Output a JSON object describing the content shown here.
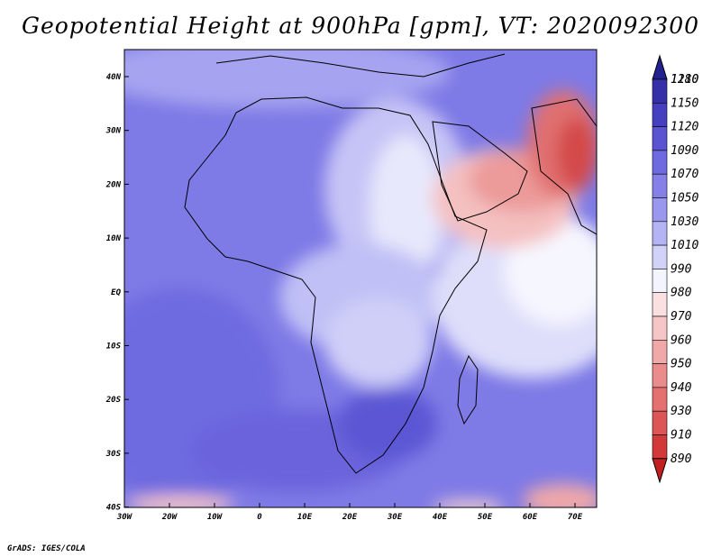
{
  "title": "Geopotential Height at 900hPa [gpm], VT: 2020092300",
  "footer": "GrADS: IGES/COLA",
  "map": {
    "lat_labels": [
      "40N",
      "30N",
      "20N",
      "10N",
      "EQ",
      "10S",
      "20S",
      "30S",
      "40S"
    ],
    "lon_labels": [
      "30W",
      "20W",
      "10W",
      "0",
      "10E",
      "20E",
      "30E",
      "40E",
      "50E",
      "60E",
      "70E"
    ],
    "lon_range": [
      -30,
      75
    ],
    "lat_range": [
      -40,
      45
    ]
  },
  "colorbar": {
    "labels": [
      "1210",
      "1180",
      "1150",
      "1120",
      "1090",
      "1070",
      "1050",
      "1030",
      "1010",
      "990",
      "980",
      "970",
      "960",
      "950",
      "940",
      "930",
      "910",
      "890"
    ],
    "colors": [
      "#232090",
      "#3530a8",
      "#4640c0",
      "#5a54d2",
      "#6e6ae0",
      "#8480e8",
      "#9a98ee",
      "#b4b4f4",
      "#d2d2f8",
      "#f4f4ff",
      "#fae0e0",
      "#f6c6c6",
      "#f0a8a8",
      "#ea8c8c",
      "#e47070",
      "#dc5656",
      "#d23a3a",
      "#c41f1f"
    ]
  }
}
